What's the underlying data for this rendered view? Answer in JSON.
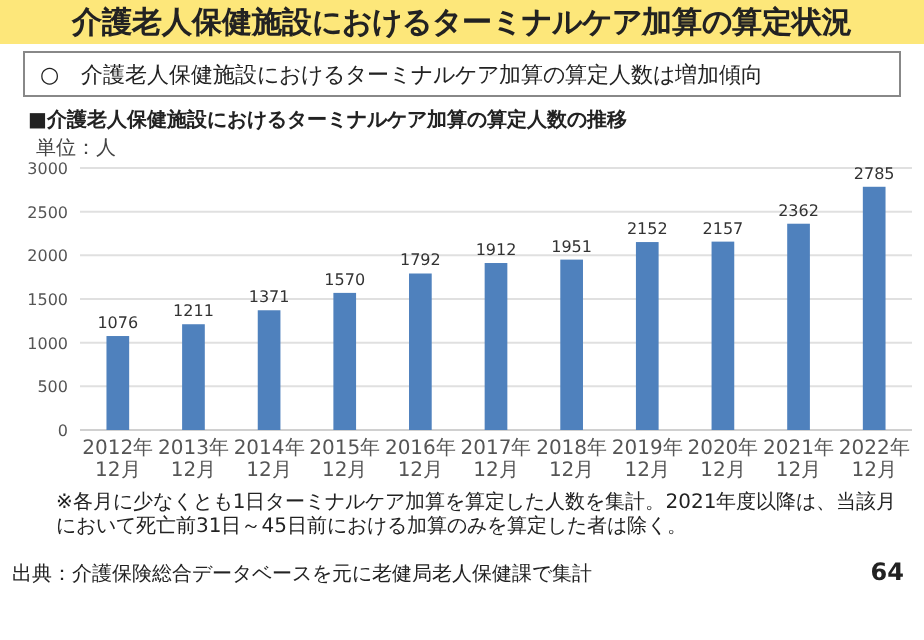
{
  "chart_data": {
    "type": "bar",
    "title": "介護老人保健施設におけるターミナルケア加算の算定状況",
    "subtitle": "○　介護老人保健施設におけるターミナルケア加算の算定人数は増加傾向",
    "annotations": [
      "■介護老人保健施設におけるターミナルケア加算の算定人数の推移",
      "単位：人",
      "※各月に少なくとも1日ターミナルケア加算を算定した人数を集計。2021年度以降は、当該月において死亡前31日～45日前における加算のみを算定した者は除く。",
      "出典：介護保険総合データベースを元に老健局老人保健課で集計",
      "64"
    ],
    "categories": [
      "2012年12月",
      "2013年12月",
      "2014年12月",
      "2015年12月",
      "2016年12月",
      "2017年12月",
      "2018年12月",
      "2019年12月",
      "2020年12月",
      "2021年12月",
      "2022年12月"
    ],
    "values": [
      1076,
      1211,
      1371,
      1570,
      1792,
      1912,
      1951,
      2152,
      2157,
      2362,
      2785
    ],
    "color": "#4f81bd",
    "ylim": [
      0,
      3000
    ],
    "yticks": [
      0,
      500,
      1000,
      1500,
      2000,
      2500,
      3000
    ],
    "grid": "y",
    "data_labels": true
  }
}
